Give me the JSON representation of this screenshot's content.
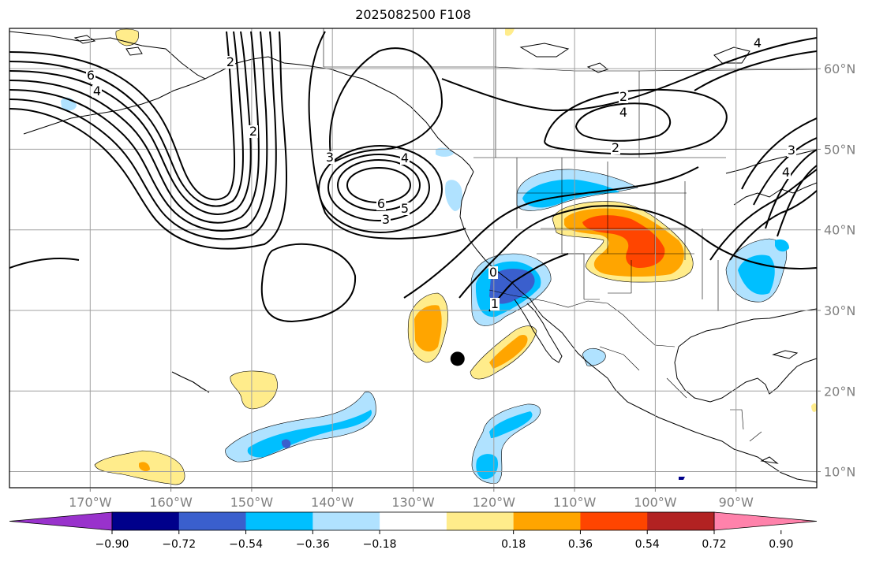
{
  "title": "2025082500 F108",
  "map": {
    "projection": "equirectangular",
    "lon_range": [
      -180,
      -80
    ],
    "lat_range": [
      8,
      65
    ],
    "longitude_ticks": [
      {
        "lon": -170,
        "label": "170°W"
      },
      {
        "lon": -160,
        "label": "160°W"
      },
      {
        "lon": -150,
        "label": "150°W"
      },
      {
        "lon": -140,
        "label": "140°W"
      },
      {
        "lon": -130,
        "label": "130°W"
      },
      {
        "lon": -120,
        "label": "120°W"
      },
      {
        "lon": -110,
        "label": "110°W"
      },
      {
        "lon": -100,
        "label": "100°W"
      },
      {
        "lon": -90,
        "label": "90°W"
      }
    ],
    "latitude_ticks": [
      {
        "lat": 60,
        "label": "60°N"
      },
      {
        "lat": 50,
        "label": "50°N"
      },
      {
        "lat": 40,
        "label": "40°N"
      },
      {
        "lat": 30,
        "label": "30°N"
      },
      {
        "lat": 20,
        "label": "20°N"
      },
      {
        "lat": 10,
        "label": "10°N"
      }
    ],
    "gridlines": true,
    "marker": {
      "lon": -124.5,
      "lat": 24.0,
      "color": "#000000"
    }
  },
  "colorbar": {
    "orientation": "horizontal",
    "extend": "both",
    "tick_labels": [
      "−0.90",
      "−0.72",
      "−0.54",
      "−0.36",
      "−0.18",
      "0.18",
      "0.36",
      "0.54",
      "0.72",
      "0.90"
    ],
    "colors": [
      "#9932cc",
      "#00008b",
      "#3a5fcd",
      "#00bfff",
      "#b0e2ff",
      "#ffffff",
      "#ffec8b",
      "#ffa500",
      "#ff4500",
      "#b22222",
      "#ff82ab"
    ]
  },
  "contour_labels": [
    "6",
    "4",
    "2",
    "2",
    "4",
    "6",
    "5",
    "3",
    "3",
    "4",
    "2",
    "2",
    "0",
    "1",
    "4",
    "3",
    "4"
  ]
}
